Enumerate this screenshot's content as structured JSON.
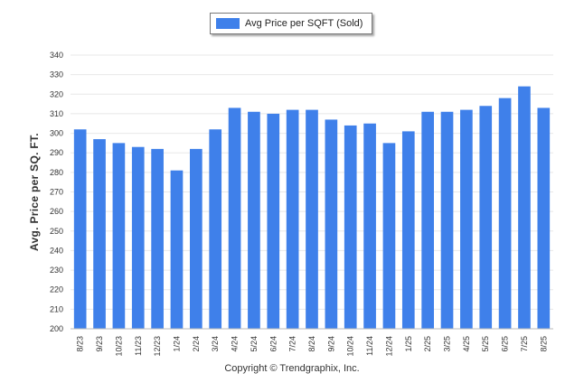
{
  "legend": {
    "label": "Avg Price per SQFT (Sold)"
  },
  "footer": {
    "copyright": "Copyright © Trendgraphix, Inc."
  },
  "colors": {
    "bar": "#3f80ea",
    "grid": "#e8e8e8",
    "axis": "#bbbbbb"
  },
  "chart_data": {
    "type": "bar",
    "title": "",
    "xlabel": "",
    "ylabel": "Avg. Price per SQ. FT.",
    "ylim": [
      200,
      340
    ],
    "yticks": [
      200,
      210,
      220,
      230,
      240,
      250,
      260,
      270,
      280,
      290,
      300,
      310,
      320,
      330,
      340
    ],
    "grid": true,
    "legend_position": "top-center",
    "categories": [
      "8/23",
      "9/23",
      "10/23",
      "11/23",
      "12/23",
      "1/24",
      "2/24",
      "3/24",
      "4/24",
      "5/24",
      "6/24",
      "7/24",
      "8/24",
      "9/24",
      "10/24",
      "11/24",
      "12/24",
      "1/25",
      "2/25",
      "3/25",
      "4/25",
      "5/25",
      "6/25",
      "7/25",
      "8/25"
    ],
    "series": [
      {
        "name": "Avg Price per SQFT (Sold)",
        "values": [
          302,
          297,
          295,
          293,
          292,
          281,
          292,
          302,
          313,
          311,
          310,
          312,
          312,
          307,
          304,
          305,
          295,
          301,
          311,
          311,
          312,
          314,
          318,
          324,
          313
        ]
      }
    ]
  }
}
